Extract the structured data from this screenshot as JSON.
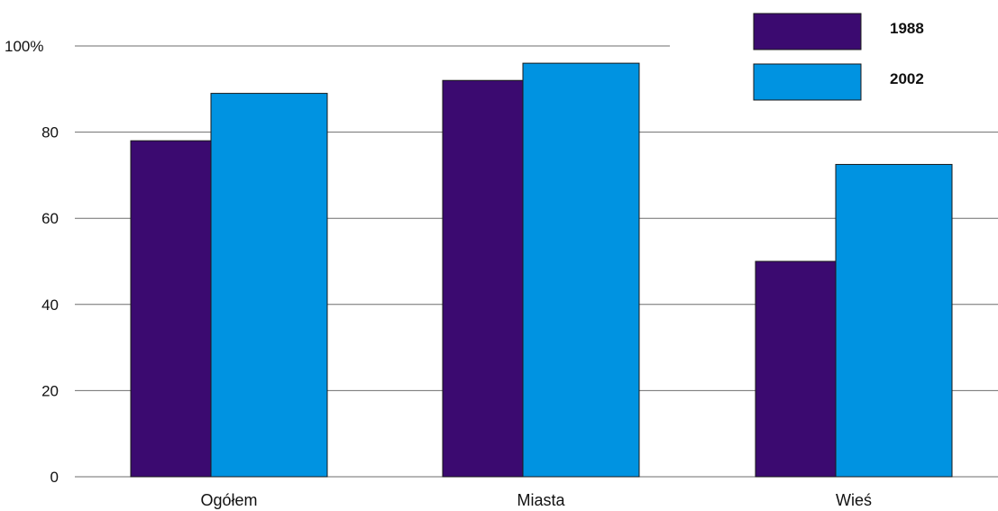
{
  "chart_data": {
    "type": "bar",
    "categories": [
      "Ogółem",
      "Miasta",
      "Wieś"
    ],
    "series": [
      {
        "name": "1988",
        "values": [
          78,
          92,
          50
        ],
        "color": "#3b0a70"
      },
      {
        "name": "2002",
        "values": [
          89,
          96,
          72.5
        ],
        "color": "#0093e1"
      }
    ],
    "ylim": [
      0,
      100
    ],
    "yticks": [
      {
        "value": 0,
        "label": "0"
      },
      {
        "value": 20,
        "label": "20"
      },
      {
        "value": 40,
        "label": "40"
      },
      {
        "value": 60,
        "label": "60"
      },
      {
        "value": 80,
        "label": "80"
      },
      {
        "value": 100,
        "label": "100%"
      }
    ],
    "grid": true,
    "legend": "top-right"
  }
}
